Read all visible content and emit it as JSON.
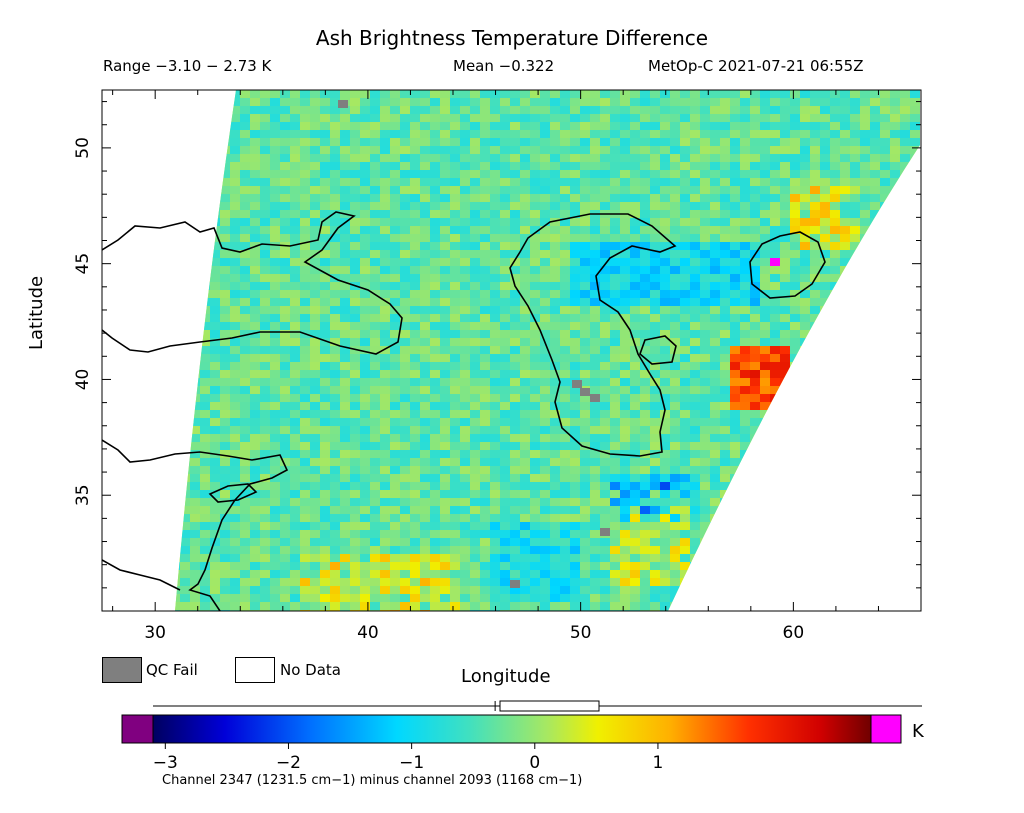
{
  "header": {
    "title": "Ash Brightness Temperature Difference",
    "range": "Range −3.10 − 2.73 K",
    "mean": "Mean −0.322",
    "satellite_time": "MetOp-C 2021-07-21 06:55Z"
  },
  "axes": {
    "x_label": "Longitude",
    "y_label": "Latitude",
    "x_ticks": [
      30,
      40,
      50,
      60
    ],
    "y_ticks": [
      35,
      40,
      45,
      50
    ],
    "x_range": [
      27.5,
      66
    ],
    "y_range": [
      30,
      52.5
    ]
  },
  "legend": {
    "qc_fail": "QC Fail",
    "no_data": "No Data",
    "qc_fail_color": "#7f7f7f",
    "no_data_color": "#ffffff"
  },
  "colorbar": {
    "unit": "K",
    "ticks": [
      -3,
      -2,
      -1,
      0,
      1
    ],
    "tick_labels": [
      "−3",
      "−2",
      "−1",
      "0",
      "1"
    ],
    "min": -3.1,
    "max": 2.73,
    "mean": -0.322,
    "under_color": "#800080",
    "over_color": "#ff00ff"
  },
  "footer": {
    "channels": "Channel 2347 (1231.5 cm−1) minus channel 2093 (1168 cm−1)"
  }
}
